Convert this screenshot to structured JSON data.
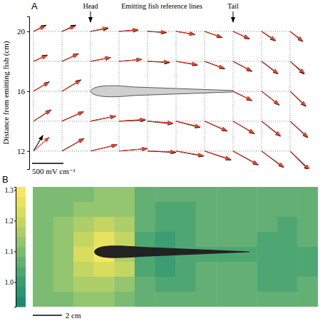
{
  "chart_data": [
    {
      "type": "vector_field",
      "panel": "A",
      "xlabel": "Emitting fish reference lines",
      "ylabel": "Distance from emitting fish (cm)",
      "annotations": [
        {
          "text": "Head",
          "x": 4
        },
        {
          "text": "Tail",
          "x": 14
        }
      ],
      "x": [
        0,
        2,
        4,
        6,
        8,
        10,
        12,
        14,
        16,
        18
      ],
      "y": [
        20,
        18,
        16,
        14,
        12
      ],
      "xlim": [
        -0.3,
        20.4
      ],
      "ylim": [
        10.8,
        21
      ],
      "yticks": [
        12,
        16,
        20
      ],
      "tick_labels": "y",
      "grid": true,
      "scale_bar": {
        "value": 500,
        "label": "500 mV cm⁻¹"
      },
      "series": [
        {
          "color": "#000000",
          "vectors": [
            [
              [
                200,
                100
              ],
              [
                220,
                100
              ],
              [
                280,
                50
              ],
              [
                300,
                20
              ],
              [
                300,
                -20
              ],
              [
                300,
                -50
              ],
              [
                280,
                -100
              ],
              [
                260,
                -120
              ],
              [
                220,
                -150
              ],
              [
                200,
                -160
              ]
            ],
            [
              [
                220,
                100
              ],
              [
                260,
                120
              ],
              [
                320,
                60
              ],
              [
                360,
                30
              ],
              [
                350,
                -20
              ],
              [
                340,
                -60
              ],
              [
                320,
                -120
              ],
              [
                300,
                -160
              ],
              [
                260,
                -200
              ],
              [
                220,
                -200
              ]
            ],
            [
              [
                250,
                150
              ],
              [
                300,
                180
              ],
              null,
              null,
              null,
              null,
              null,
              [
                300,
                -150
              ],
              [
                280,
                -220
              ],
              [
                250,
                -240
              ]
            ],
            [
              [
                280,
                180
              ],
              [
                340,
                150
              ],
              [
                400,
                80
              ],
              [
                420,
                20
              ],
              [
                400,
                -40
              ],
              [
                380,
                -100
              ],
              [
                360,
                -160
              ],
              [
                340,
                -200
              ],
              [
                300,
                -240
              ],
              [
                280,
                -260
              ]
            ],
            [
              [
                150,
                250
              ],
              [
                350,
                200
              ],
              [
                420,
                100
              ],
              [
                450,
                40
              ],
              [
                450,
                -20
              ],
              [
                440,
                -80
              ],
              [
                420,
                -140
              ],
              [
                400,
                -220
              ],
              [
                350,
                -260
              ],
              [
                300,
                -300
              ]
            ]
          ]
        },
        {
          "color": "#e8402a",
          "vectors": [
            [
              [
                180,
                80
              ],
              [
                210,
                80
              ],
              [
                270,
                60
              ],
              [
                300,
                30
              ],
              [
                290,
                -10
              ],
              [
                290,
                -50
              ],
              [
                270,
                -90
              ],
              [
                250,
                -110
              ],
              [
                220,
                -140
              ],
              [
                200,
                -150
              ]
            ],
            [
              [
                210,
                90
              ],
              [
                250,
                110
              ],
              [
                310,
                60
              ],
              [
                350,
                30
              ],
              [
                340,
                -10
              ],
              [
                330,
                -50
              ],
              [
                310,
                -110
              ],
              [
                290,
                -150
              ],
              [
                260,
                -190
              ],
              [
                230,
                -190
              ]
            ],
            [
              [
                240,
                140
              ],
              [
                290,
                170
              ],
              null,
              null,
              null,
              null,
              null,
              [
                290,
                -140
              ],
              [
                270,
                -210
              ],
              [
                250,
                -230
              ]
            ],
            [
              [
                270,
                170
              ],
              [
                330,
                150
              ],
              [
                390,
                80
              ],
              [
                410,
                30
              ],
              [
                400,
                -30
              ],
              [
                380,
                -90
              ],
              [
                350,
                -150
              ],
              [
                330,
                -190
              ],
              [
                300,
                -230
              ],
              [
                280,
                -250
              ]
            ],
            [
              [
                250,
                220
              ],
              [
                340,
                190
              ],
              [
                410,
                100
              ],
              [
                440,
                40
              ],
              [
                440,
                -10
              ],
              [
                430,
                -70
              ],
              [
                410,
                -130
              ],
              [
                390,
                -210
              ],
              [
                350,
                -250
              ],
              [
                310,
                -290
              ]
            ]
          ]
        }
      ]
    },
    {
      "type": "heatmap",
      "panel": "B",
      "xlim": [
        0,
        19.6
      ],
      "ylim": [
        0,
        8.4
      ],
      "tick_labels": false,
      "scale_bar": {
        "value": 2,
        "label": "2 cm"
      },
      "colorbar": {
        "lim": [
          0.92,
          1.31
        ],
        "ticks": [
          {
            "value": 1,
            "label": "1.0"
          },
          1.1,
          1.2,
          1.3
        ]
      },
      "values": [
        [
          1.1,
          1.1,
          1.11,
          1.12,
          1.12,
          1.08,
          1.05,
          1.05,
          1.06,
          1.07,
          1.07,
          1.06,
          1.05,
          1.06
        ],
        [
          1.1,
          1.11,
          1.12,
          1.14,
          1.13,
          1.07,
          1.03,
          1.04,
          1.05,
          1.06,
          1.06,
          1.05,
          1.05,
          1.05
        ],
        [
          1.1,
          1.12,
          1.15,
          1.18,
          1.16,
          1.06,
          1.02,
          1.04,
          1.05,
          1.05,
          1.05,
          1.05,
          1.04,
          1.05
        ],
        [
          1.11,
          1.13,
          1.19,
          1.26,
          1.2,
          1.04,
          1.01,
          1.03,
          1.05,
          1.05,
          1.05,
          1.04,
          1.04,
          1.05
        ],
        [
          1.11,
          1.14,
          1.22,
          1.3,
          1.16,
          1.02,
          1.0,
          1.02,
          1.04,
          1.04,
          1.04,
          1.03,
          1.03,
          1.04
        ],
        [
          1.11,
          1.13,
          1.19,
          1.24,
          1.18,
          1.04,
          1.01,
          1.03,
          1.05,
          1.05,
          1.05,
          1.04,
          1.03,
          1.04
        ],
        [
          1.1,
          1.12,
          1.15,
          1.17,
          1.14,
          1.06,
          1.03,
          1.04,
          1.05,
          1.05,
          1.05,
          1.04,
          1.04,
          1.05
        ],
        [
          1.1,
          1.11,
          1.12,
          1.12,
          1.11,
          1.08,
          1.05,
          1.05,
          1.06,
          1.06,
          1.05,
          1.05,
          1.05,
          1.05
        ]
      ]
    }
  ]
}
